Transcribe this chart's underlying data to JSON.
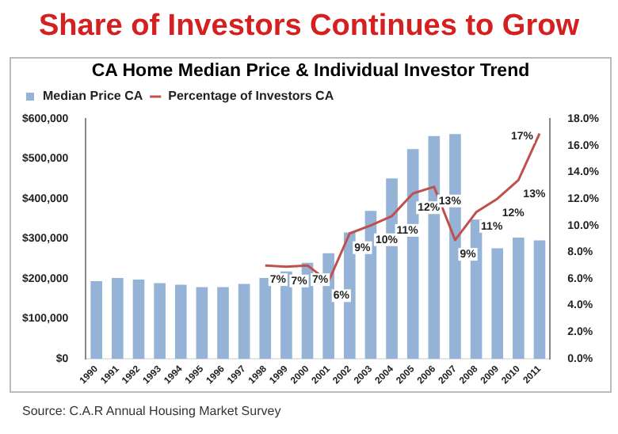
{
  "chart_data": {
    "type": "bar",
    "title": "Share of Investors Continues to Grow",
    "subtitle": "CA Home Median Price & Individual Investor Trend",
    "categories": [
      "1990",
      "1991",
      "1992",
      "1993",
      "1994",
      "1995",
      "1996",
      "1997",
      "1998",
      "1999",
      "2000",
      "2001",
      "2002",
      "2003",
      "2004",
      "2005",
      "2006",
      "2007",
      "2008",
      "2009",
      "2010",
      "2011"
    ],
    "series": [
      {
        "name": "Median Price CA",
        "color": "#95b3d7",
        "values": [
          194000,
          202000,
          198000,
          189000,
          185000,
          179000,
          179000,
          187000,
          202000,
          218000,
          240000,
          264000,
          316000,
          370000,
          451000,
          524000,
          557000,
          562000,
          348000,
          276000,
          303000,
          296000
        ]
      },
      {
        "name": "Percentage of Investors CA",
        "type": "line",
        "axis": "y2",
        "color": "#c0504d",
        "values": [
          null,
          null,
          null,
          null,
          null,
          null,
          null,
          null,
          7.0,
          6.9,
          7.0,
          5.8,
          9.4,
          10.0,
          10.7,
          12.4,
          12.9,
          8.9,
          11.0,
          12.0,
          13.4,
          16.9
        ],
        "value_labels": [
          null,
          null,
          null,
          null,
          null,
          null,
          null,
          null,
          "7%",
          "7%",
          "7%",
          "6%",
          "9%",
          "10%",
          "11%",
          "12%",
          "13%",
          "9%",
          "11%",
          "12%",
          "13%",
          "17%"
        ]
      }
    ],
    "ylim": [
      0,
      600000
    ],
    "yticks": [
      {
        "value": 0,
        "label": "$0"
      },
      {
        "value": 100000,
        "label": "$100,000"
      },
      {
        "value": 200000,
        "label": "$200,000"
      },
      {
        "value": 300000,
        "label": "$300,000"
      },
      {
        "value": 400000,
        "label": "$400,000"
      },
      {
        "value": 500000,
        "label": "$500,000"
      },
      {
        "value": 600000,
        "label": "$600,000"
      }
    ],
    "y2lim": [
      0,
      18
    ],
    "y2ticks": [
      {
        "value": 0,
        "label": "0.0%"
      },
      {
        "value": 2,
        "label": "2.0%"
      },
      {
        "value": 4,
        "label": "4.0%"
      },
      {
        "value": 6,
        "label": "6.0%"
      },
      {
        "value": 8,
        "label": "8.0%"
      },
      {
        "value": 10,
        "label": "10.0%"
      },
      {
        "value": 12,
        "label": "12.0%"
      },
      {
        "value": 14,
        "label": "14.0%"
      },
      {
        "value": 16,
        "label": "16.0%"
      },
      {
        "value": 18,
        "label": "18.0%"
      }
    ],
    "legend": "top left",
    "grid": false,
    "marker": "none",
    "annotations": [
      "Source: C.A.R Annual Housing Market Survey"
    ]
  }
}
